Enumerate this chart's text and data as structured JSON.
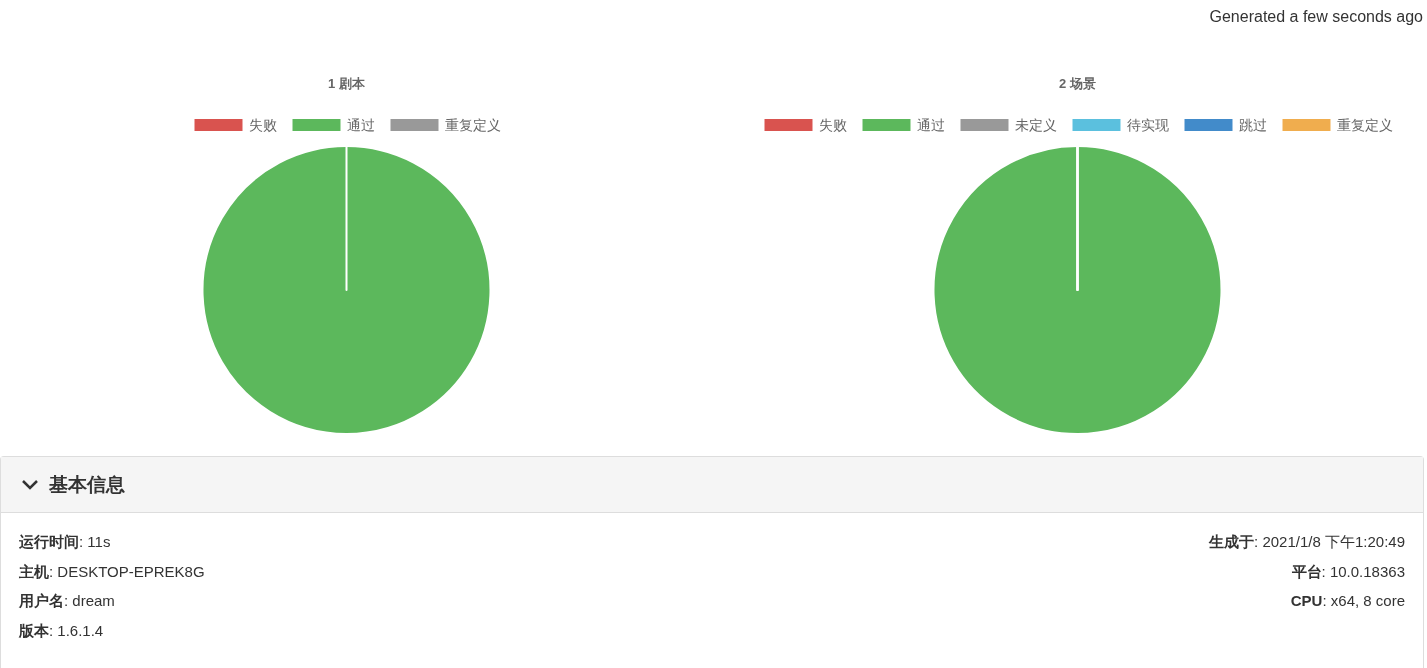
{
  "chart_data": [
    {
      "type": "pie",
      "title": "1 剧本",
      "categories": [
        "失败",
        "通过",
        "重复定义"
      ],
      "values": [
        0,
        100,
        0
      ],
      "colors": [
        "#d9534f",
        "#5cb85c",
        "#999999"
      ],
      "legend": "top",
      "annotations": [
        "Generated a few seconds ago"
      ]
    },
    {
      "type": "pie",
      "title": "2 场景",
      "categories": [
        "失败",
        "通过",
        "未定义",
        "待实现",
        "跳过",
        "重复定义"
      ],
      "values": [
        0,
        100,
        0,
        0,
        0,
        0
      ],
      "colors": [
        "#d9534f",
        "#5cb85c",
        "#999999",
        "#5bc0de",
        "#428bca",
        "#f0ad4e"
      ],
      "legend": "top"
    },
    {
      "type": "other",
      "title": "基本信息",
      "annotations": [
        "运行时间: 11s",
        "生成于: 2021/1/8 下午1:20:49",
        "主机: DESKTOP-EPREK8G",
        "平台: 10.0.18363",
        "用户名: dream",
        "CPU: x64, 8 core",
        "版本: 1.6.1.4"
      ]
    }
  ]
}
